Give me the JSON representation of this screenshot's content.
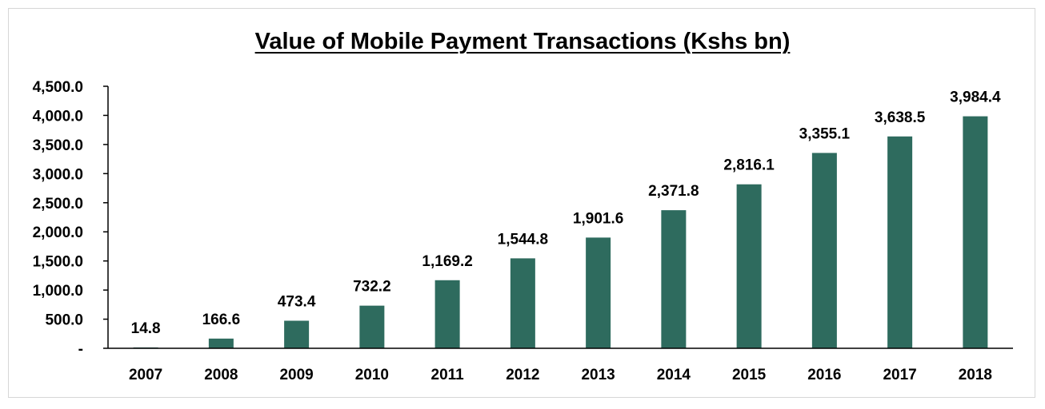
{
  "chart_data": {
    "type": "bar",
    "title": "Value of Mobile Payment Transactions (Kshs bn)",
    "categories": [
      "2007",
      "2008",
      "2009",
      "2010",
      "2011",
      "2012",
      "2013",
      "2014",
      "2015",
      "2016",
      "2017",
      "2018"
    ],
    "values": [
      14.8,
      166.6,
      473.4,
      732.2,
      1169.2,
      1544.8,
      1901.6,
      2371.8,
      2816.1,
      3355.1,
      3638.5,
      3984.4
    ],
    "data_labels": [
      "14.8",
      "166.6",
      "473.4",
      "732.2",
      "1,169.2",
      "1,544.8",
      "1,901.6",
      "2,371.8",
      "2,816.1",
      "3,355.1",
      "3,638.5",
      "3,984.4"
    ],
    "ylim": [
      0,
      4500
    ],
    "y_ticks": [
      0,
      500,
      1000,
      1500,
      2000,
      2500,
      3000,
      3500,
      4000,
      4500
    ],
    "y_tick_labels": [
      "-",
      "500.0",
      "1,000.0",
      "1,500.0",
      "2,000.0",
      "2,500.0",
      "3,000.0",
      "3,500.0",
      "4,000.0",
      "4,500.0"
    ],
    "xlabel": "",
    "ylabel": "",
    "grid": false,
    "legend": "none",
    "bar_color": "#2e6b5e"
  }
}
